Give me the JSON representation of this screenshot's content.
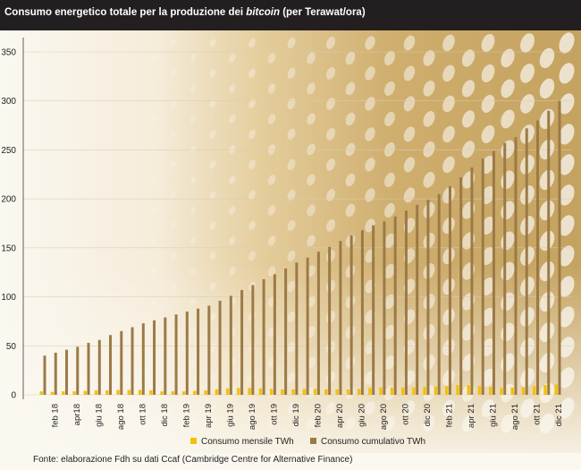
{
  "title": {
    "main": "Consumo energetico totale per la produzione dei",
    "italic": "bitcoin",
    "unit": "(per Terawat/ora)"
  },
  "source": "Fonte: elaborazione Fdh su dati Ccaf (Cambridge Centre for Alternative Finance)",
  "colors": {
    "monthly": "#f2c10f",
    "cumulative": "#9c7a46",
    "header_bg": "#231f20",
    "background_light": "#fbf8f0",
    "background_gold": "#c9a663"
  },
  "chart_data": {
    "type": "bar",
    "title": "Consumo energetico totale per la produzione dei bitcoin (per Terawat/ora)",
    "ylim": [
      0,
      350
    ],
    "yticks": [
      0,
      50,
      100,
      150,
      200,
      250,
      300,
      350
    ],
    "grid": true,
    "legend_position": "bottom-center",
    "categories": [
      "gen 18",
      "feb 18",
      "mar 18",
      "apr18",
      "mag 18",
      "giu 18",
      "lug 18",
      "ago 18",
      "set 18",
      "ott 18",
      "nov 18",
      "dic 18",
      "gen 19",
      "feb 19",
      "mar 19",
      "apr 19",
      "mag 19",
      "giu 19",
      "lug 19",
      "ago 19",
      "set 19",
      "ott 19",
      "nov 19",
      "dic 19",
      "gen 20",
      "feb 20",
      "mar 20",
      "apr 20",
      "mag 20",
      "giu 20",
      "lug 20",
      "ago 20",
      "set 20",
      "ott 20",
      "nov 20",
      "dic 20",
      "gen 21",
      "feb 21",
      "mar 21",
      "apr 21",
      "mag 21",
      "giu 21",
      "lug 21",
      "ago 21",
      "set 21",
      "ott 21",
      "nov 21",
      "dic 21"
    ],
    "tick_labels": [
      "feb 18",
      "apr18",
      "giu 18",
      "ago 18",
      "ott 18",
      "dic 18",
      "feb 19",
      "apr 19",
      "giu 19",
      "ago 19",
      "ott 19",
      "dic 19",
      "feb 20",
      "apr 20",
      "giu 20",
      "ago 20",
      "ott 20",
      "dic 20",
      "feb 21",
      "apr 21",
      "giu 21",
      "ago 21",
      "ott 21",
      "dic 21"
    ],
    "series": [
      {
        "name": "Consumo mensile TWh",
        "color": "#f2c10f",
        "values": [
          3.5,
          3,
          3.5,
          3.5,
          4,
          4.5,
          4.5,
          5,
          5,
          5,
          4.5,
          3.5,
          3.5,
          3.5,
          4,
          4.5,
          5.5,
          6.5,
          7,
          7,
          6.5,
          6,
          5.5,
          5.5,
          6,
          6,
          5.5,
          5.5,
          5.5,
          6,
          7,
          7.5,
          7.5,
          7.5,
          7.5,
          8,
          8.5,
          9,
          10,
          10,
          9,
          8,
          7,
          7.5,
          8,
          9,
          10,
          10.5
        ]
      },
      {
        "name": "Consumo cumulativo TWh",
        "color": "#9c7a46",
        "values": [
          40,
          43,
          46,
          49,
          53,
          56,
          61,
          65,
          69,
          73,
          76,
          79,
          82,
          85,
          88,
          91,
          96,
          101,
          107,
          112,
          118,
          123,
          129,
          135,
          140,
          146,
          151,
          157,
          163,
          168,
          173,
          177,
          182,
          188,
          194,
          199,
          205,
          213,
          222,
          232,
          241,
          249,
          257,
          263,
          272,
          280,
          290,
          300
        ]
      }
    ]
  }
}
